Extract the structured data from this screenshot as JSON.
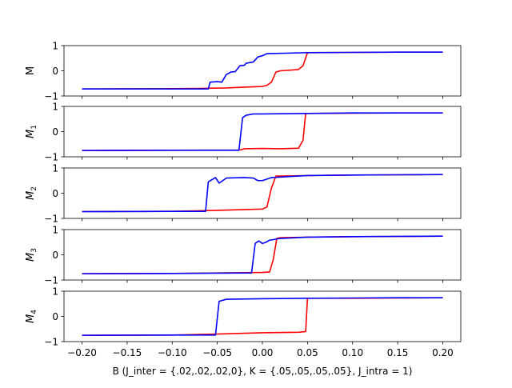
{
  "figure": {
    "xlabel": "B (J_inter = {.02,.02,.02,0}, K = {.05,.05,.05,.05}, J_intra = 1)"
  },
  "chart_data": [
    {
      "type": "line",
      "ylabel": "M",
      "xlim": [
        -0.22,
        0.22
      ],
      "ylim": [
        -1,
        1
      ],
      "yticks": [
        -1,
        0,
        1
      ],
      "grid": false,
      "series": [
        {
          "color": "#ff0000",
          "x": [
            -0.2,
            -0.1,
            -0.07,
            -0.04,
            -0.02,
            0.0,
            0.005,
            0.01,
            0.015,
            0.02,
            0.04,
            0.045,
            0.05,
            0.1,
            0.15,
            0.2
          ],
          "y": [
            -0.72,
            -0.71,
            -0.7,
            -0.68,
            -0.65,
            -0.62,
            -0.58,
            -0.45,
            -0.05,
            0.0,
            0.05,
            0.2,
            0.72,
            0.73,
            0.74,
            0.74
          ]
        },
        {
          "color": "#0000ff",
          "x": [
            -0.2,
            -0.1,
            -0.06,
            -0.058,
            -0.05,
            -0.045,
            -0.04,
            -0.035,
            -0.03,
            -0.025,
            -0.02,
            -0.018,
            -0.01,
            -0.005,
            0.0,
            0.005,
            0.05,
            0.1,
            0.15,
            0.2
          ],
          "y": [
            -0.72,
            -0.72,
            -0.72,
            -0.45,
            -0.43,
            -0.45,
            -0.15,
            -0.05,
            -0.03,
            0.2,
            0.22,
            0.3,
            0.35,
            0.55,
            0.6,
            0.68,
            0.72,
            0.73,
            0.74,
            0.74
          ]
        }
      ]
    },
    {
      "type": "line",
      "ylabel": "M_1",
      "xlim": [
        -0.22,
        0.22
      ],
      "ylim": [
        -1,
        1
      ],
      "yticks": [
        -1,
        0,
        1
      ],
      "grid": false,
      "series": [
        {
          "color": "#ff0000",
          "x": [
            -0.2,
            -0.1,
            -0.025,
            -0.02,
            0.0,
            0.02,
            0.04,
            0.045,
            0.048,
            0.05,
            0.1,
            0.15,
            0.2
          ],
          "y": [
            -0.75,
            -0.74,
            -0.73,
            -0.68,
            -0.67,
            -0.68,
            -0.66,
            -0.35,
            0.72,
            0.72,
            0.73,
            0.74,
            0.74
          ]
        },
        {
          "color": "#0000ff",
          "x": [
            -0.2,
            -0.1,
            -0.026,
            -0.022,
            -0.018,
            -0.01,
            0.0,
            0.05,
            0.1,
            0.15,
            0.2
          ],
          "y": [
            -0.75,
            -0.74,
            -0.74,
            0.55,
            0.65,
            0.7,
            0.7,
            0.72,
            0.74,
            0.74,
            0.74
          ]
        }
      ]
    },
    {
      "type": "line",
      "ylabel": "M_2",
      "xlim": [
        -0.22,
        0.22
      ],
      "ylim": [
        -1,
        1
      ],
      "yticks": [
        -1,
        0,
        1
      ],
      "grid": false,
      "series": [
        {
          "color": "#ff0000",
          "x": [
            -0.2,
            -0.1,
            -0.05,
            0.0,
            0.005,
            0.01,
            0.015,
            0.02,
            0.05,
            0.1,
            0.15,
            0.2
          ],
          "y": [
            -0.73,
            -0.72,
            -0.68,
            -0.63,
            -0.55,
            0.2,
            0.68,
            0.68,
            0.7,
            0.72,
            0.73,
            0.74
          ]
        },
        {
          "color": "#0000ff",
          "x": [
            -0.2,
            -0.1,
            -0.063,
            -0.06,
            -0.052,
            -0.048,
            -0.04,
            -0.02,
            -0.01,
            -0.005,
            0.0,
            0.01,
            0.05,
            0.1,
            0.15,
            0.2
          ],
          "y": [
            -0.73,
            -0.72,
            -0.72,
            0.45,
            0.62,
            0.4,
            0.6,
            0.62,
            0.6,
            0.5,
            0.5,
            0.62,
            0.7,
            0.72,
            0.73,
            0.74
          ]
        }
      ]
    },
    {
      "type": "line",
      "ylabel": "M_3",
      "xlim": [
        -0.22,
        0.22
      ],
      "ylim": [
        -1,
        1
      ],
      "yticks": [
        -1,
        0,
        1
      ],
      "grid": false,
      "series": [
        {
          "color": "#ff0000",
          "x": [
            -0.2,
            -0.1,
            -0.05,
            0.0,
            0.008,
            0.012,
            0.016,
            0.02,
            0.05,
            0.1,
            0.15,
            0.2
          ],
          "y": [
            -0.75,
            -0.74,
            -0.72,
            -0.7,
            -0.68,
            -0.2,
            0.65,
            0.68,
            0.7,
            0.72,
            0.73,
            0.74
          ]
        },
        {
          "color": "#0000ff",
          "x": [
            -0.2,
            -0.1,
            -0.012,
            -0.008,
            -0.004,
            0.0,
            0.004,
            0.008,
            0.02,
            0.05,
            0.1,
            0.15,
            0.2
          ],
          "y": [
            -0.75,
            -0.74,
            -0.72,
            0.45,
            0.55,
            0.45,
            0.5,
            0.58,
            0.65,
            0.7,
            0.72,
            0.73,
            0.74
          ]
        }
      ]
    },
    {
      "type": "line",
      "ylabel": "M_4",
      "xlim": [
        -0.22,
        0.22
      ],
      "ylim": [
        -1,
        1
      ],
      "yticks": [
        -1,
        0,
        1
      ],
      "xticks": [
        -0.2,
        -0.15,
        -0.1,
        -0.05,
        0.0,
        0.05,
        0.1,
        0.15,
        0.2
      ],
      "xticklabels": [
        "−0.20",
        "−0.15",
        "−0.10",
        "−0.05",
        "0.00",
        "0.05",
        "0.10",
        "0.15",
        "0.20"
      ],
      "grid": false,
      "series": [
        {
          "color": "#ff0000",
          "x": [
            -0.2,
            -0.1,
            -0.05,
            0.0,
            0.04,
            0.048,
            0.05,
            0.1,
            0.15,
            0.2
          ],
          "y": [
            -0.75,
            -0.74,
            -0.7,
            -0.65,
            -0.63,
            -0.6,
            0.72,
            0.72,
            0.73,
            0.74
          ]
        },
        {
          "color": "#0000ff",
          "x": [
            -0.2,
            -0.1,
            -0.052,
            -0.048,
            -0.04,
            0.0,
            0.05,
            0.1,
            0.15,
            0.2
          ],
          "y": [
            -0.75,
            -0.74,
            -0.74,
            0.6,
            0.68,
            0.7,
            0.72,
            0.73,
            0.74,
            0.74
          ]
        }
      ]
    }
  ]
}
